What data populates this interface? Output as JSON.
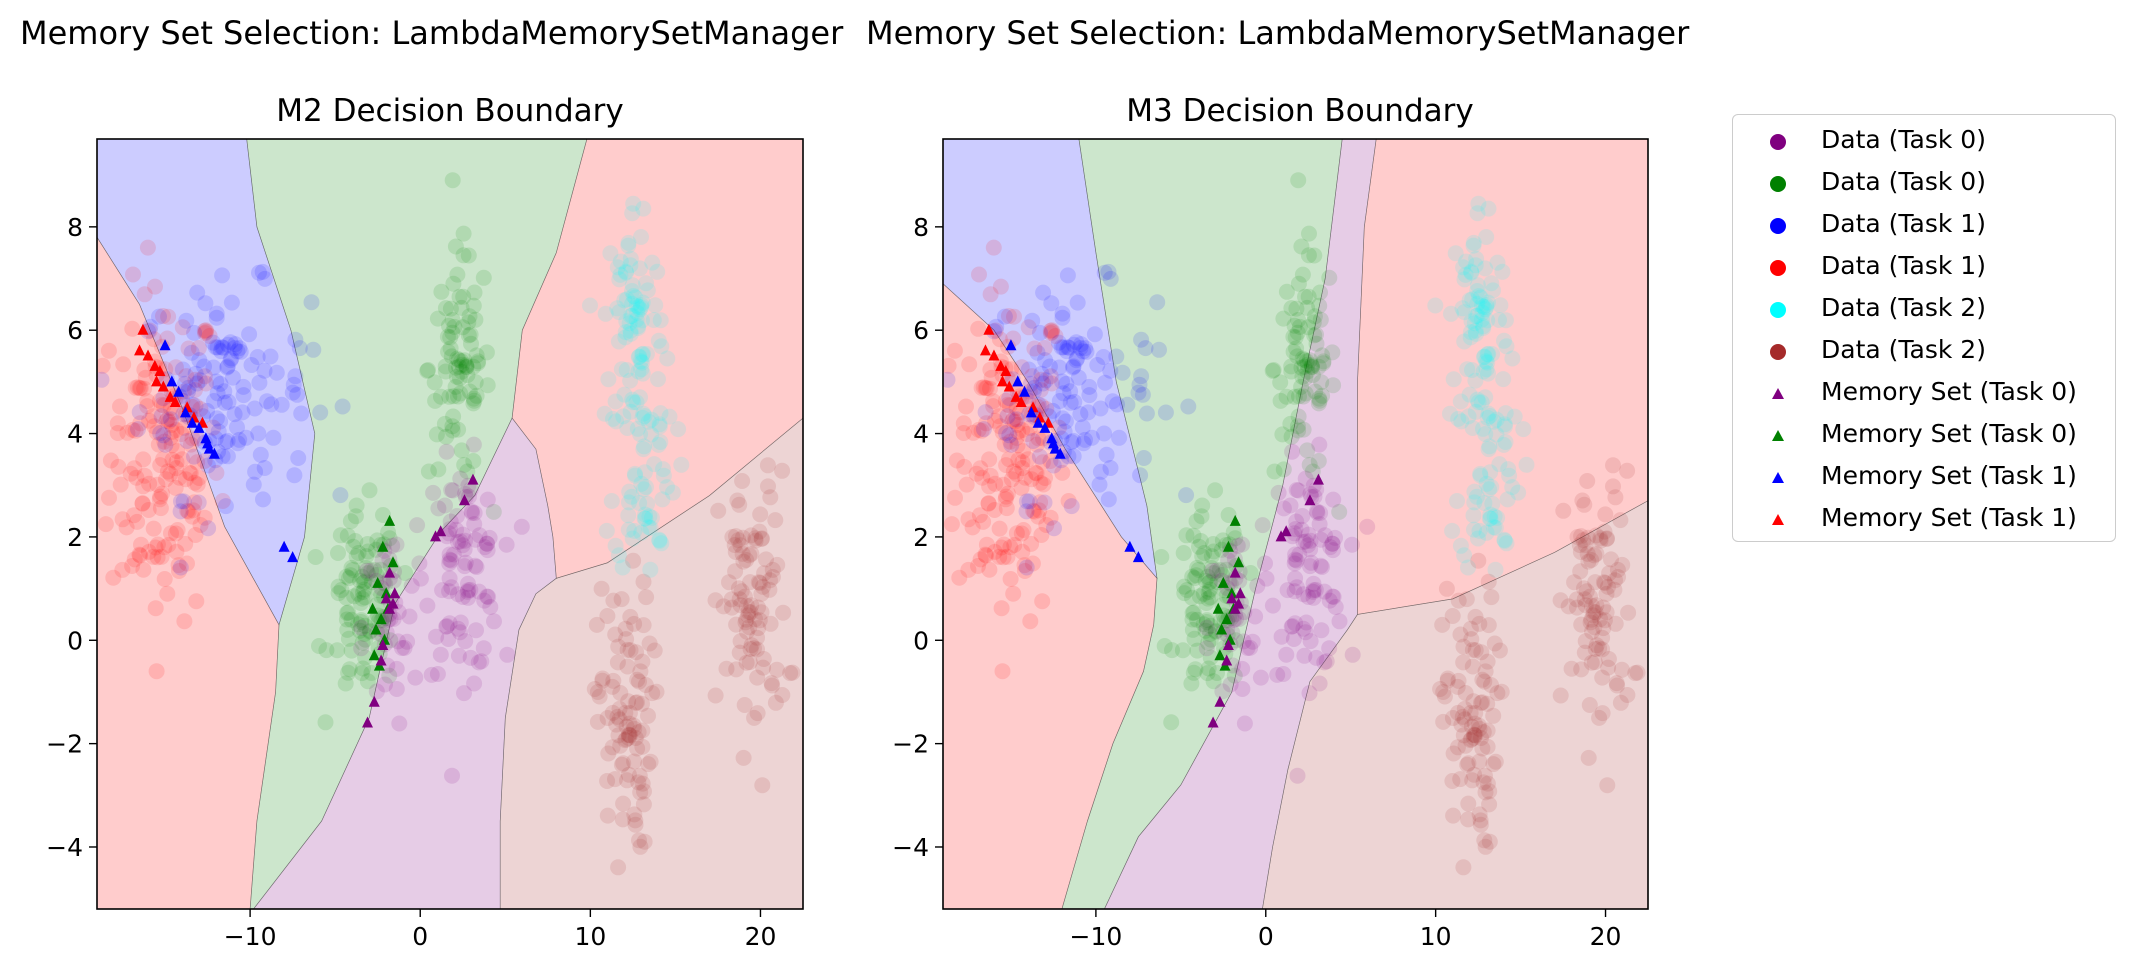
{
  "suptitles": [
    "Memory Set Selection: LambdaMemorySetManager",
    "Memory Set Selection: LambdaMemorySetManager"
  ],
  "colors": {
    "task0_purple": "#800080",
    "task0_green": "#008000",
    "task1_blue": "#0000ff",
    "task1_red": "#ff0000",
    "task2_cyan": "#00ffff",
    "task2_brown": "#a52a2a"
  },
  "legend": [
    {
      "label": "Data (Task 0)",
      "marker": "circle",
      "color": "#800080"
    },
    {
      "label": "Data (Task 0)",
      "marker": "circle",
      "color": "#008000"
    },
    {
      "label": "Data (Task 1)",
      "marker": "circle",
      "color": "#0000ff"
    },
    {
      "label": "Data (Task 1)",
      "marker": "circle",
      "color": "#ff0000"
    },
    {
      "label": "Data (Task 2)",
      "marker": "circle",
      "color": "#00ffff"
    },
    {
      "label": "Data (Task 2)",
      "marker": "circle",
      "color": "#a52a2a"
    },
    {
      "label": "Memory Set (Task 0)",
      "marker": "triangle",
      "color": "#800080"
    },
    {
      "label": "Memory Set (Task 0)",
      "marker": "triangle",
      "color": "#008000"
    },
    {
      "label": "Memory Set (Task 1)",
      "marker": "triangle",
      "color": "#0000ff"
    },
    {
      "label": "Memory Set (Task 1)",
      "marker": "triangle",
      "color": "#ff0000"
    }
  ],
  "chart_data": [
    {
      "type": "scatter",
      "title": "M2 Decision Boundary",
      "xlim": [
        -19,
        22.5
      ],
      "ylim": [
        -5.2,
        9.7
      ],
      "xticks": [
        -10,
        0,
        10,
        20
      ],
      "xtick_labels": [
        "−10",
        "0",
        "10",
        "20"
      ],
      "yticks": [
        -4,
        -2,
        0,
        2,
        4,
        6,
        8
      ],
      "ytick_labels": [
        "−4",
        "−2",
        "0",
        "2",
        "4",
        "6",
        "8"
      ],
      "regions": [
        {
          "class": "blue",
          "fill": "#0000ff",
          "points": [
            [
              -19,
              9.7
            ],
            [
              -10.2,
              9.7
            ],
            [
              -9.6,
              8
            ],
            [
              -7.6,
              6
            ],
            [
              -6.2,
              4
            ],
            [
              -6.8,
              2
            ],
            [
              -8.3,
              0.3
            ],
            [
              -11.5,
              2.2
            ],
            [
              -14,
              4.5
            ],
            [
              -16.5,
              6.5
            ],
            [
              -19,
              7.8
            ]
          ]
        },
        {
          "class": "green",
          "fill": "#008000",
          "points": [
            [
              -10.2,
              9.7
            ],
            [
              9.8,
              9.7
            ],
            [
              8,
              7.5
            ],
            [
              6,
              6
            ],
            [
              5.4,
              4.3
            ],
            [
              3.2,
              2.8
            ],
            [
              1.2,
              2.1
            ],
            [
              -1.5,
              0.7
            ],
            [
              -3,
              -1.5
            ],
            [
              -5.8,
              -3.5
            ],
            [
              -9.8,
              -5.2
            ],
            [
              -10,
              -5.2
            ],
            [
              -9.6,
              -3.5
            ],
            [
              -8.5,
              -1
            ],
            [
              -8.3,
              0.3
            ],
            [
              -6.8,
              2
            ],
            [
              -6.2,
              4
            ],
            [
              -7.6,
              6
            ],
            [
              -9.6,
              8
            ]
          ]
        },
        {
          "class": "red",
          "fill": "#ff0000",
          "points": [
            [
              9.8,
              9.7
            ],
            [
              22.5,
              9.7
            ],
            [
              22.5,
              4.3
            ],
            [
              17,
              2.8
            ],
            [
              11,
              1.5
            ],
            [
              8,
              1.2
            ],
            [
              7.8,
              2
            ],
            [
              7.5,
              2.6
            ],
            [
              6.8,
              3.7
            ],
            [
              5.4,
              4.3
            ],
            [
              6,
              6
            ],
            [
              8,
              7.5
            ]
          ]
        },
        {
          "class": "red",
          "fill": "#ff0000",
          "points": [
            [
              -19,
              7.8
            ],
            [
              -16.5,
              6.5
            ],
            [
              -14,
              4.5
            ],
            [
              -11.5,
              2.2
            ],
            [
              -8.3,
              0.3
            ],
            [
              -8.5,
              -1
            ],
            [
              -9.6,
              -3.5
            ],
            [
              -10,
              -5.2
            ],
            [
              -19,
              -5.2
            ]
          ]
        },
        {
          "class": "brown",
          "fill": "#a52a2a",
          "points": [
            [
              8,
              1.2
            ],
            [
              11,
              1.5
            ],
            [
              17,
              2.8
            ],
            [
              22.5,
              4.3
            ],
            [
              22.5,
              -5.2
            ],
            [
              4.7,
              -5.2
            ],
            [
              4.7,
              -3.5
            ],
            [
              5,
              -1.5
            ],
            [
              5.8,
              0.2
            ],
            [
              6.8,
              0.9
            ]
          ]
        },
        {
          "class": "purple",
          "fill": "#800080",
          "points": [
            [
              5.4,
              4.3
            ],
            [
              6.8,
              3.7
            ],
            [
              7.5,
              2.6
            ],
            [
              7.8,
              2
            ],
            [
              8,
              1.2
            ],
            [
              6.8,
              0.9
            ],
            [
              5.8,
              0.2
            ],
            [
              5,
              -1.5
            ],
            [
              4.7,
              -3.5
            ],
            [
              4.7,
              -5.2
            ],
            [
              -9.8,
              -5.2
            ],
            [
              -5.8,
              -3.5
            ],
            [
              -3,
              -1.5
            ],
            [
              -1.5,
              0.7
            ],
            [
              1.2,
              2.1
            ],
            [
              3.2,
              2.8
            ]
          ]
        }
      ]
    },
    {
      "type": "scatter",
      "title": "M3 Decision Boundary",
      "xlim": [
        -19,
        22.5
      ],
      "ylim": [
        -5.2,
        9.7
      ],
      "xticks": [
        -10,
        0,
        10,
        20
      ],
      "xtick_labels": [
        "−10",
        "0",
        "10",
        "20"
      ],
      "yticks": [
        -4,
        -2,
        0,
        2,
        4,
        6,
        8
      ],
      "ytick_labels": [
        "−4",
        "−2",
        "0",
        "2",
        "4",
        "6",
        "8"
      ],
      "regions": [
        {
          "class": "blue",
          "fill": "#0000ff",
          "points": [
            [
              -19,
              9.7
            ],
            [
              -11,
              9.7
            ],
            [
              -10,
              7.5
            ],
            [
              -8.8,
              5
            ],
            [
              -7,
              2.6
            ],
            [
              -6.4,
              1.2
            ],
            [
              -8.5,
              2
            ],
            [
              -11.8,
              3.7
            ],
            [
              -14,
              5
            ],
            [
              -16,
              6
            ],
            [
              -19,
              6.9
            ]
          ]
        },
        {
          "class": "green",
          "fill": "#008000",
          "points": [
            [
              -11,
              9.7
            ],
            [
              4.5,
              9.7
            ],
            [
              3.5,
              7
            ],
            [
              2.2,
              5
            ],
            [
              1,
              3
            ],
            [
              -0.6,
              1
            ],
            [
              -2,
              -1
            ],
            [
              -5,
              -2.8
            ],
            [
              -7.5,
              -3.8
            ],
            [
              -9.5,
              -5.2
            ],
            [
              -12,
              -5.2
            ],
            [
              -10.5,
              -3.5
            ],
            [
              -9,
              -2
            ],
            [
              -7.2,
              -0.6
            ],
            [
              -6.6,
              0.3
            ],
            [
              -6.4,
              1.2
            ],
            [
              -7,
              2.6
            ],
            [
              -8.8,
              5
            ],
            [
              -10,
              7.5
            ]
          ]
        },
        {
          "class": "purple",
          "fill": "#800080",
          "points": [
            [
              4.5,
              9.7
            ],
            [
              6.5,
              9.7
            ],
            [
              5.8,
              8
            ],
            [
              5.4,
              5
            ],
            [
              5.4,
              0.5
            ],
            [
              4.8,
              0.2
            ],
            [
              2.6,
              -0.8
            ],
            [
              1.3,
              -2.5
            ],
            [
              0.4,
              -4
            ],
            [
              -0.2,
              -5.2
            ],
            [
              -9.5,
              -5.2
            ],
            [
              -7.5,
              -3.8
            ],
            [
              -5,
              -2.8
            ],
            [
              -2,
              -1
            ],
            [
              -0.6,
              1
            ],
            [
              1,
              3
            ],
            [
              2.2,
              5
            ],
            [
              3.5,
              7
            ]
          ]
        },
        {
          "class": "red",
          "fill": "#ff0000",
          "points": [
            [
              6.5,
              9.7
            ],
            [
              22.5,
              9.7
            ],
            [
              22.5,
              2.7
            ],
            [
              17,
              1.7
            ],
            [
              11,
              0.8
            ],
            [
              5.4,
              0.5
            ],
            [
              5.4,
              5
            ],
            [
              5.8,
              8
            ]
          ]
        },
        {
          "class": "red",
          "fill": "#ff0000",
          "points": [
            [
              -19,
              6.9
            ],
            [
              -16,
              6
            ],
            [
              -14,
              5
            ],
            [
              -11.8,
              3.7
            ],
            [
              -8.5,
              2
            ],
            [
              -6.4,
              1.2
            ],
            [
              -6.6,
              0.3
            ],
            [
              -7.2,
              -0.6
            ],
            [
              -9,
              -2
            ],
            [
              -10.5,
              -3.5
            ],
            [
              -12,
              -5.2
            ],
            [
              -19,
              -5.2
            ]
          ]
        },
        {
          "class": "brown",
          "fill": "#a52a2a",
          "points": [
            [
              5.4,
              0.5
            ],
            [
              11,
              0.8
            ],
            [
              17,
              1.7
            ],
            [
              22.5,
              2.7
            ],
            [
              22.5,
              -5.2
            ],
            [
              -0.2,
              -5.2
            ],
            [
              0.4,
              -4
            ],
            [
              1.3,
              -2.5
            ],
            [
              2.6,
              -0.8
            ],
            [
              4.8,
              0.2
            ]
          ]
        }
      ]
    }
  ],
  "clusters": [
    {
      "class": "red",
      "cx": -15.0,
      "cy": 3.6,
      "sx": 1.6,
      "sy": 1.6,
      "n": 170
    },
    {
      "class": "blue",
      "cx": -11.5,
      "cy": 4.8,
      "sx": 2.5,
      "sy": 1.0,
      "n": 130
    },
    {
      "class": "green",
      "cx": 2.3,
      "cy": 5.3,
      "sx": 0.9,
      "sy": 1.1,
      "n": 85
    },
    {
      "class": "green",
      "cx": -3.3,
      "cy": 0.7,
      "sx": 1.0,
      "sy": 0.9,
      "n": 95
    },
    {
      "class": "purple",
      "cx": 2.5,
      "cy": 1.4,
      "sx": 1.1,
      "sy": 1.0,
      "n": 90
    },
    {
      "class": "purple",
      "cx": -1.8,
      "cy": 0.2,
      "sx": 0.8,
      "sy": 1.0,
      "n": 40
    },
    {
      "class": "cyan",
      "cx": 12.6,
      "cy": 6.2,
      "sx": 0.9,
      "sy": 1.2,
      "n": 80
    },
    {
      "class": "cyan",
      "cx": 13.2,
      "cy": 3.3,
      "sx": 0.9,
      "sy": 1.0,
      "n": 60
    },
    {
      "class": "brown",
      "cx": 12.0,
      "cy": -1.5,
      "sx": 0.8,
      "sy": 1.3,
      "n": 95
    },
    {
      "class": "brown",
      "cx": 19.6,
      "cy": 0.6,
      "sx": 1.0,
      "sy": 1.3,
      "n": 95
    }
  ],
  "memory_set": {
    "red": [
      [
        -16.3,
        6.0
      ],
      [
        -16.5,
        5.6
      ],
      [
        -16.0,
        5.5
      ],
      [
        -15.6,
        5.3
      ],
      [
        -15.3,
        5.2
      ],
      [
        -15.5,
        5.0
      ],
      [
        -15.1,
        4.9
      ],
      [
        -14.7,
        4.7
      ],
      [
        -14.4,
        4.6
      ],
      [
        -13.7,
        4.5
      ],
      [
        -13.3,
        4.3
      ],
      [
        -12.8,
        4.2
      ]
    ],
    "blue": [
      [
        -15.0,
        5.7
      ],
      [
        -14.6,
        5.0
      ],
      [
        -14.2,
        4.8
      ],
      [
        -13.8,
        4.4
      ],
      [
        -13.4,
        4.2
      ],
      [
        -13.0,
        4.1
      ],
      [
        -12.6,
        3.9
      ],
      [
        -12.4,
        3.7
      ],
      [
        -12.1,
        3.6
      ],
      [
        -12.5,
        3.8
      ],
      [
        -8.0,
        1.8
      ],
      [
        -7.5,
        1.6
      ]
    ],
    "green": [
      [
        -1.8,
        2.3
      ],
      [
        -2.2,
        1.8
      ],
      [
        -1.6,
        1.5
      ],
      [
        -2.5,
        1.1
      ],
      [
        -2.0,
        0.9
      ],
      [
        -2.8,
        0.6
      ],
      [
        -2.3,
        0.4
      ],
      [
        -2.6,
        0.2
      ],
      [
        -2.1,
        0.0
      ],
      [
        -2.7,
        -0.3
      ],
      [
        -2.4,
        -0.5
      ],
      [
        -1.9,
        0.6
      ]
    ],
    "purple": [
      [
        3.1,
        3.1
      ],
      [
        2.6,
        2.7
      ],
      [
        1.2,
        2.1
      ],
      [
        0.9,
        2.0
      ],
      [
        -1.8,
        1.3
      ],
      [
        -1.5,
        0.9
      ],
      [
        -2.0,
        0.8
      ],
      [
        -1.8,
        0.6
      ],
      [
        -2.3,
        -0.4
      ],
      [
        -2.7,
        -1.2
      ],
      [
        -3.1,
        -1.6
      ],
      [
        -1.6,
        0.7
      ],
      [
        -2.2,
        -0.1
      ]
    ]
  }
}
